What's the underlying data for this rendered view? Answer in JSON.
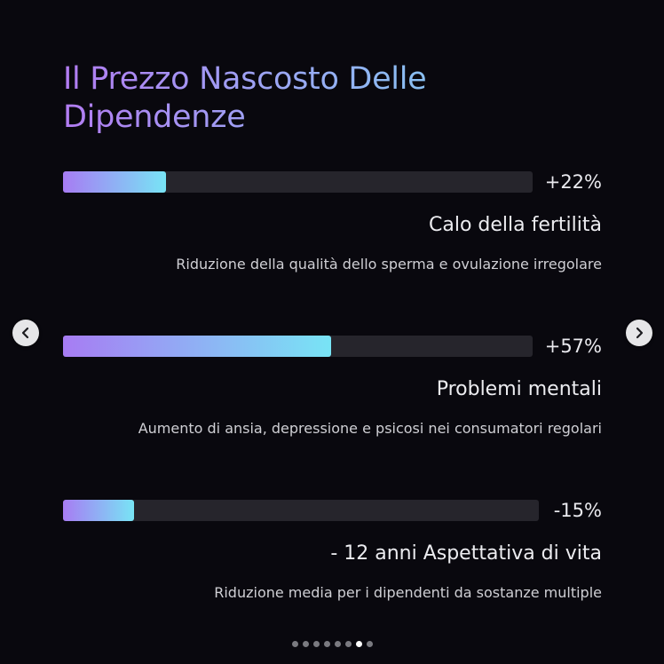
{
  "title": "Il Prezzo Nascosto Delle Dipendenze",
  "stats": [
    {
      "value": "+22%",
      "fill_fraction": 0.22,
      "title": "Calo della fertilità",
      "description": "Riduzione della qualità dello sperma e ovulazione irregolare"
    },
    {
      "value": "+57%",
      "fill_fraction": 0.57,
      "title": "Problemi mentali",
      "description": "Aumento di ansia, depressione e psicosi nei consumatori regolari"
    },
    {
      "value": "-15%",
      "fill_fraction": 0.15,
      "title": "- 12 anni Aspettativa di vita",
      "description": "Riduzione media per i dipendenti da sostanze multiple"
    }
  ],
  "navigation": {
    "prev_icon": "chevron-left-icon",
    "next_icon": "chevron-right-icon"
  },
  "pagination": {
    "total": 8,
    "active": 7
  },
  "colors": {
    "background": "#09080e",
    "gradient_start": "#a77cf3",
    "gradient_end": "#78e4f5",
    "track": "#26252c"
  }
}
